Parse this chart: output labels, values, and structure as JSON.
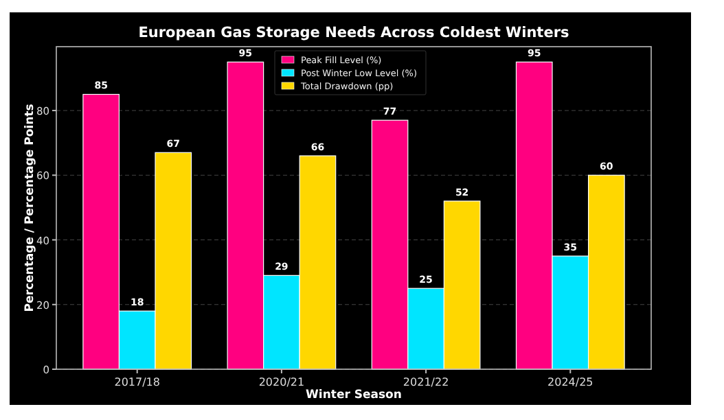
{
  "chart_data": {
    "type": "bar",
    "title": "European Gas Storage Needs Across Coldest Winters",
    "xlabel": "Winter Season",
    "ylabel": "Percentage / Percentage Points",
    "categories": [
      "2017/18",
      "2020/21",
      "2021/22",
      "2024/25"
    ],
    "series": [
      {
        "name": "Peak Fill Level (%)",
        "color": "#ff0080",
        "values": [
          85,
          95,
          77,
          95
        ]
      },
      {
        "name": "Post Winter Low Level (%)",
        "color": "#00e5ff",
        "values": [
          18,
          29,
          25,
          35
        ]
      },
      {
        "name": "Total Drawdown (pp)",
        "color": "#ffd700",
        "values": [
          67,
          66,
          52,
          60
        ]
      }
    ],
    "ylim": [
      0,
      99.75
    ],
    "yticks": [
      0,
      20,
      40,
      60,
      80
    ],
    "grid": "y",
    "legend": "top",
    "data_labels": true
  }
}
